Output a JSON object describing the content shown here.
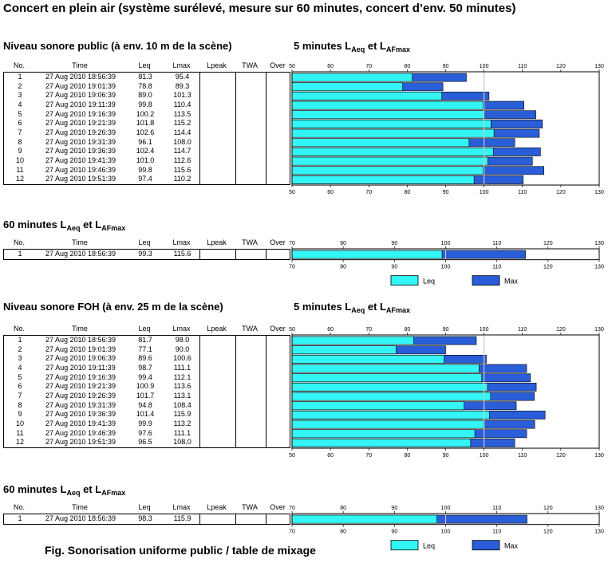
{
  "title": "Concert en plein air (système surélevé, mesure sur  60 minutes, concert d’env. 50 minutes)",
  "figure_caption": "Fig. Sonorisation uniforme public / table de mixage",
  "columns": [
    "No.",
    "Time",
    "Leq",
    "Lmax",
    "Lpeak",
    "TWA",
    "Over"
  ],
  "chart_titles": {
    "five_min_prefix": "5 minutes L",
    "sixty_min_prefix": "60 minutes L",
    "sub_aeq": "Aeq",
    "joiner": " et L",
    "sub_afmax": "AFmax"
  },
  "legend": {
    "leq": "Leq",
    "max": "Max"
  },
  "colors": {
    "leq": "#33f5f5",
    "max": "#2a5ed8"
  },
  "chart_data": [
    {
      "type": "bar",
      "section": "Niveau sonore public (à env. 10 m de la scène)",
      "period": "5 minutes",
      "categories": [
        "1",
        "2",
        "3",
        "4",
        "5",
        "6",
        "7",
        "8",
        "9",
        "10",
        "11",
        "12"
      ],
      "times": [
        "27 Aug 2010 18:56:39",
        "27 Aug 2010 19:01:39",
        "27 Aug 2010 19:06:39",
        "27 Aug 2010 19:11:39",
        "27 Aug 2010 19:16:39",
        "27 Aug 2010 19:21:39",
        "27 Aug 2010 19:26:39",
        "27 Aug 2010 19:31:39",
        "27 Aug 2010 19:36:39",
        "27 Aug 2010 19:41:39",
        "27 Aug 2010 19:46:39",
        "27 Aug 2010 19:51:39"
      ],
      "series": [
        {
          "name": "Leq",
          "values": [
            81.3,
            78.8,
            89.0,
            99.8,
            100.2,
            101.8,
            102.6,
            96.1,
            102.4,
            101.0,
            99.8,
            97.4
          ]
        },
        {
          "name": "Max",
          "values": [
            95.4,
            89.3,
            101.3,
            110.4,
            113.5,
            115.2,
            114.4,
            108.0,
            114.7,
            112.6,
            115.6,
            110.2
          ]
        }
      ],
      "xlim": [
        50,
        130
      ],
      "xticks": [
        50,
        60,
        70,
        80,
        90,
        100,
        110,
        120,
        130
      ],
      "reference_line": 100
    },
    {
      "type": "bar",
      "section": "Niveau sonore public (à env. 10 m de la scène)",
      "period": "60 minutes",
      "categories": [
        "1"
      ],
      "times": [
        "27 Aug 2010 18:56:39"
      ],
      "series": [
        {
          "name": "Leq",
          "values": [
            99.3
          ]
        },
        {
          "name": "Max",
          "values": [
            115.6
          ]
        }
      ],
      "xlim": [
        70,
        130
      ],
      "xticks": [
        70,
        80,
        90,
        100,
        110,
        120,
        130
      ],
      "reference_line": 100
    },
    {
      "type": "bar",
      "section": "Niveau sonore FOH (à env. 25 m de la scène)",
      "period": "5 minutes",
      "categories": [
        "1",
        "2",
        "3",
        "4",
        "5",
        "6",
        "7",
        "8",
        "9",
        "10",
        "11",
        "12"
      ],
      "times": [
        "27 Aug 2010 18:56:39",
        "27 Aug 2010 19:01:39",
        "27 Aug 2010 19:06:39",
        "27 Aug 2010 19:11:39",
        "27 Aug 2010 19:16:39",
        "27 Aug 2010 19:21:39",
        "27 Aug 2010 19:26:39",
        "27 Aug 2010 19:31:39",
        "27 Aug 2010 19:36:39",
        "27 Aug 2010 19:41:39",
        "27 Aug 2010 19:46:39",
        "27 Aug 2010 19:51:39"
      ],
      "series": [
        {
          "name": "Leq",
          "values": [
            81.7,
            77.1,
            89.6,
            98.7,
            99.4,
            100.9,
            101.7,
            94.8,
            101.4,
            99.9,
            97.6,
            96.5
          ]
        },
        {
          "name": "Max",
          "values": [
            98.0,
            90.0,
            100.6,
            111.1,
            112.1,
            113.6,
            113.1,
            108.4,
            115.9,
            113.2,
            111.1,
            108.0
          ]
        }
      ],
      "xlim": [
        50,
        130
      ],
      "xticks": [
        50,
        60,
        70,
        80,
        90,
        100,
        110,
        120,
        130
      ],
      "reference_line": 100
    },
    {
      "type": "bar",
      "section": "Niveau sonore FOH (à env. 25 m de la scène)",
      "period": "60 minutes",
      "categories": [
        "1"
      ],
      "times": [
        "27 Aug 2010 18:56:39"
      ],
      "series": [
        {
          "name": "Leq",
          "values": [
            98.3
          ]
        },
        {
          "name": "Max",
          "values": [
            115.9
          ]
        }
      ],
      "xlim": [
        70,
        130
      ],
      "xticks": [
        70,
        80,
        90,
        100,
        110,
        120,
        130
      ],
      "reference_line": 100
    }
  ]
}
